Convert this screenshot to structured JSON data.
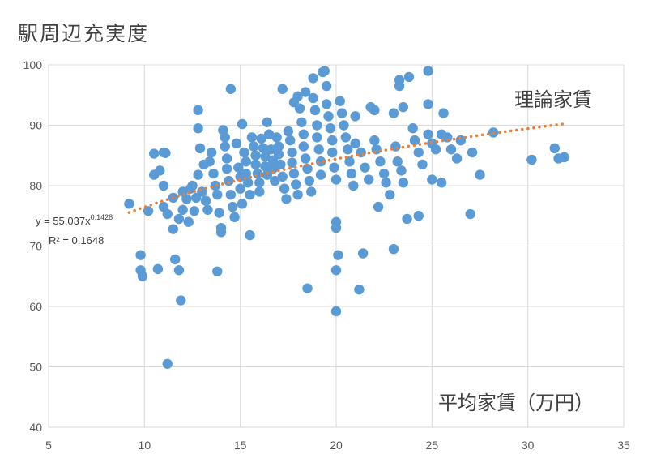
{
  "chart_data": {
    "type": "scatter",
    "ylabel": "駅周辺充実度",
    "xlabel": "平均家賃（万円）",
    "trendline_label": "理論家賃",
    "equation_prefix": "y = 55.037x",
    "equation_exponent": "0.1428",
    "r_squared": "R² = 0.1648",
    "xlim": [
      5,
      35
    ],
    "ylim": [
      40,
      100
    ],
    "xticks": [
      5,
      10,
      15,
      20,
      25,
      30,
      35
    ],
    "yticks": [
      40,
      50,
      60,
      70,
      80,
      90,
      100
    ],
    "grid": true,
    "colors": {
      "points": "#5b9bd5",
      "trend": "#ed7d31",
      "grid": "#d9d9d9"
    },
    "trendline": {
      "a": 55.037,
      "b": 0.1428,
      "x_range": [
        9.2,
        32
      ]
    },
    "points": [
      [
        9.2,
        77.0
      ],
      [
        9.8,
        68.5
      ],
      [
        9.8,
        66.0
      ],
      [
        9.9,
        65.0
      ],
      [
        10.2,
        75.8
      ],
      [
        10.5,
        81.8
      ],
      [
        10.5,
        85.3
      ],
      [
        10.7,
        66.2
      ],
      [
        10.8,
        82.5
      ],
      [
        11.0,
        85.5
      ],
      [
        11.1,
        85.4
      ],
      [
        11.0,
        80.0
      ],
      [
        11.0,
        76.5
      ],
      [
        11.2,
        75.3
      ],
      [
        11.2,
        50.5
      ],
      [
        11.5,
        78.0
      ],
      [
        11.5,
        72.8
      ],
      [
        11.6,
        67.8
      ],
      [
        11.8,
        66.0
      ],
      [
        11.9,
        61.0
      ],
      [
        11.8,
        74.5
      ],
      [
        12.0,
        79.0
      ],
      [
        12.0,
        76.0
      ],
      [
        12.2,
        77.8
      ],
      [
        12.3,
        74.0
      ],
      [
        12.4,
        79.5
      ],
      [
        12.5,
        80.0
      ],
      [
        12.6,
        75.8
      ],
      [
        12.7,
        78.0
      ],
      [
        12.8,
        92.5
      ],
      [
        12.8,
        89.5
      ],
      [
        12.9,
        86.2
      ],
      [
        12.8,
        81.8
      ],
      [
        13.0,
        79.0
      ],
      [
        13.1,
        83.5
      ],
      [
        13.2,
        77.5
      ],
      [
        13.3,
        76.0
      ],
      [
        13.4,
        84.0
      ],
      [
        13.5,
        85.5
      ],
      [
        13.6,
        82.0
      ],
      [
        13.7,
        80.0
      ],
      [
        13.8,
        78.5
      ],
      [
        13.8,
        65.8
      ],
      [
        13.9,
        75.5
      ],
      [
        14.0,
        73.0
      ],
      [
        14.0,
        72.3
      ],
      [
        14.1,
        89.2
      ],
      [
        14.2,
        88.0
      ],
      [
        14.2,
        86.5
      ],
      [
        14.3,
        84.5
      ],
      [
        14.3,
        82.8
      ],
      [
        14.4,
        80.8
      ],
      [
        14.5,
        78.5
      ],
      [
        14.6,
        76.5
      ],
      [
        14.5,
        96.0
      ],
      [
        14.7,
        74.8
      ],
      [
        14.8,
        87.0
      ],
      [
        14.9,
        83.0
      ],
      [
        15.0,
        81.5
      ],
      [
        15.0,
        79.5
      ],
      [
        15.1,
        77.0
      ],
      [
        15.1,
        90.2
      ],
      [
        15.2,
        85.5
      ],
      [
        15.3,
        84.0
      ],
      [
        15.3,
        82.0
      ],
      [
        15.4,
        80.5
      ],
      [
        15.5,
        78.5
      ],
      [
        15.5,
        71.8
      ],
      [
        15.6,
        88.0
      ],
      [
        15.7,
        86.5
      ],
      [
        15.8,
        85.0
      ],
      [
        15.8,
        83.5
      ],
      [
        15.9,
        82.0
      ],
      [
        16.0,
        80.5
      ],
      [
        16.0,
        79.0
      ],
      [
        16.1,
        87.8
      ],
      [
        16.2,
        86.2
      ],
      [
        16.3,
        84.8
      ],
      [
        16.3,
        83.2
      ],
      [
        16.4,
        81.8
      ],
      [
        16.4,
        90.5
      ],
      [
        16.5,
        88.5
      ],
      [
        16.6,
        86.0
      ],
      [
        16.7,
        84.2
      ],
      [
        16.7,
        82.8
      ],
      [
        16.8,
        80.8
      ],
      [
        16.9,
        88.0
      ],
      [
        17.0,
        86.5
      ],
      [
        17.0,
        85.2
      ],
      [
        17.1,
        83.5
      ],
      [
        17.2,
        81.5
      ],
      [
        17.2,
        96.0
      ],
      [
        17.3,
        79.5
      ],
      [
        17.4,
        77.8
      ],
      [
        17.5,
        89.0
      ],
      [
        17.6,
        87.5
      ],
      [
        17.7,
        85.5
      ],
      [
        17.7,
        83.8
      ],
      [
        17.8,
        82.0
      ],
      [
        17.8,
        93.8
      ],
      [
        17.9,
        80.2
      ],
      [
        18.0,
        78.5
      ],
      [
        18.0,
        94.8
      ],
      [
        18.1,
        92.8
      ],
      [
        18.2,
        90.5
      ],
      [
        18.3,
        88.5
      ],
      [
        18.3,
        86.5
      ],
      [
        18.4,
        84.5
      ],
      [
        18.4,
        95.5
      ],
      [
        18.5,
        82.8
      ],
      [
        18.5,
        63.0
      ],
      [
        18.6,
        80.8
      ],
      [
        18.7,
        79.0
      ],
      [
        18.8,
        97.8
      ],
      [
        18.8,
        94.5
      ],
      [
        18.9,
        92.5
      ],
      [
        19.0,
        90.0
      ],
      [
        19.0,
        88.0
      ],
      [
        19.1,
        86.0
      ],
      [
        19.2,
        84.0
      ],
      [
        19.2,
        81.8
      ],
      [
        19.3,
        98.8
      ],
      [
        19.4,
        99.0
      ],
      [
        19.5,
        96.5
      ],
      [
        19.5,
        93.5
      ],
      [
        19.6,
        91.5
      ],
      [
        19.7,
        89.5
      ],
      [
        19.8,
        87.5
      ],
      [
        19.8,
        85.5
      ],
      [
        19.9,
        83.0
      ],
      [
        20.0,
        81.0
      ],
      [
        20.0,
        74.0
      ],
      [
        20.0,
        73.0
      ],
      [
        20.0,
        66.0
      ],
      [
        20.0,
        59.2
      ],
      [
        20.1,
        68.5
      ],
      [
        20.2,
        94.0
      ],
      [
        20.3,
        92.0
      ],
      [
        20.4,
        90.0
      ],
      [
        20.5,
        88.0
      ],
      [
        20.6,
        86.0
      ],
      [
        20.7,
        84.0
      ],
      [
        20.8,
        82.0
      ],
      [
        20.9,
        80.0
      ],
      [
        21.0,
        87.0
      ],
      [
        21.0,
        91.5
      ],
      [
        21.2,
        62.8
      ],
      [
        21.3,
        85.5
      ],
      [
        21.4,
        68.8
      ],
      [
        21.5,
        83.0
      ],
      [
        21.7,
        81.0
      ],
      [
        21.8,
        93.0
      ],
      [
        22.0,
        92.5
      ],
      [
        22.0,
        87.5
      ],
      [
        22.1,
        86.0
      ],
      [
        22.2,
        76.5
      ],
      [
        22.3,
        84.0
      ],
      [
        22.5,
        82.0
      ],
      [
        22.6,
        80.5
      ],
      [
        22.8,
        78.5
      ],
      [
        23.0,
        92.0
      ],
      [
        23.0,
        69.5
      ],
      [
        23.1,
        86.5
      ],
      [
        23.2,
        84.0
      ],
      [
        23.3,
        97.5
      ],
      [
        23.3,
        96.5
      ],
      [
        23.4,
        82.5
      ],
      [
        23.5,
        80.5
      ],
      [
        23.5,
        93.0
      ],
      [
        23.7,
        74.5
      ],
      [
        23.8,
        98.0
      ],
      [
        24.0,
        89.5
      ],
      [
        24.1,
        87.5
      ],
      [
        24.3,
        85.5
      ],
      [
        24.3,
        75.0
      ],
      [
        24.5,
        83.5
      ],
      [
        24.8,
        99.0
      ],
      [
        24.8,
        93.5
      ],
      [
        24.8,
        88.5
      ],
      [
        25.0,
        87.0
      ],
      [
        25.0,
        81.0
      ],
      [
        25.2,
        86.0
      ],
      [
        25.5,
        88.5
      ],
      [
        25.5,
        80.5
      ],
      [
        25.6,
        92.0
      ],
      [
        25.8,
        88.0
      ],
      [
        26.0,
        86.0
      ],
      [
        26.3,
        84.5
      ],
      [
        26.5,
        87.5
      ],
      [
        27.0,
        75.3
      ],
      [
        27.1,
        85.5
      ],
      [
        27.5,
        81.8
      ],
      [
        28.2,
        88.8
      ],
      [
        30.2,
        84.3
      ],
      [
        31.4,
        86.2
      ],
      [
        31.6,
        84.5
      ],
      [
        31.9,
        84.7
      ]
    ]
  }
}
